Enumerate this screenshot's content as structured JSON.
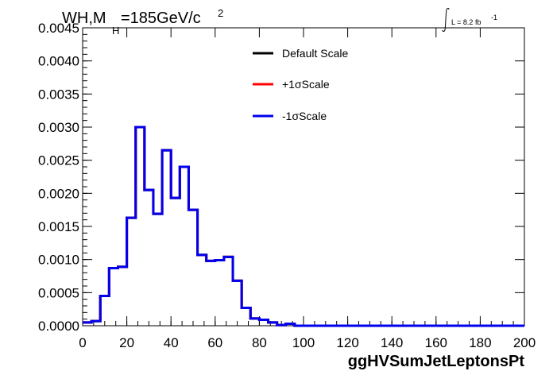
{
  "chart_data": {
    "type": "line",
    "title_main": "WH,M",
    "title_sub": "H",
    "title_rest": "=185GeV/c",
    "title_sup": "2",
    "lumi_text": "L = 8.2 fb",
    "lumi_sup": "-1",
    "xlabel": "ggHVSumJetLeptonsPt",
    "ylabel": "",
    "xlim": [
      0,
      200
    ],
    "ylim": [
      0,
      0.0045
    ],
    "x_ticks": [
      "0",
      "20",
      "40",
      "60",
      "80",
      "100",
      "120",
      "140",
      "160",
      "180",
      "200"
    ],
    "y_ticks": [
      "0.0000",
      "0.0005",
      "0.0010",
      "0.0015",
      "0.0020",
      "0.0025",
      "0.0030",
      "0.0035",
      "0.0040",
      "0.0045"
    ],
    "bin_width": 4,
    "bin_edges_start": 0,
    "legend_position": "top-center",
    "series": [
      {
        "name": "Default Scale",
        "color": "#000000",
        "values": [
          5e-05,
          7e-05,
          0.00045,
          0.00087,
          0.00089,
          0.00163,
          0.003,
          0.00205,
          0.00169,
          0.00265,
          0.00193,
          0.0024,
          0.00175,
          0.00107,
          0.00098,
          0.00099,
          0.00104,
          0.00068,
          0.00027,
          0.00011,
          9e-05,
          5e-05,
          1e-05,
          3e-05,
          0.0,
          0.0,
          0.0,
          0.0,
          0.0,
          0.0,
          0.0,
          0.0,
          0.0,
          0.0,
          0.0,
          0.0,
          0.0,
          0.0,
          0.0,
          0.0,
          0.0,
          0.0,
          0.0,
          0.0,
          0.0,
          0.0,
          0.0,
          0.0,
          0.0,
          0.0
        ]
      },
      {
        "name": "+1σScale",
        "color": "#ff0000",
        "values": [
          5e-05,
          7e-05,
          0.00045,
          0.00087,
          0.00089,
          0.00163,
          0.003,
          0.00205,
          0.00169,
          0.00265,
          0.00193,
          0.0024,
          0.00175,
          0.00107,
          0.00098,
          0.00099,
          0.00104,
          0.00068,
          0.00027,
          0.00011,
          9e-05,
          5e-05,
          1e-05,
          3e-05,
          0.0,
          0.0,
          0.0,
          0.0,
          0.0,
          0.0,
          0.0,
          0.0,
          0.0,
          0.0,
          0.0,
          0.0,
          0.0,
          0.0,
          0.0,
          0.0,
          0.0,
          0.0,
          0.0,
          0.0,
          0.0,
          0.0,
          0.0,
          0.0,
          0.0,
          0.0
        ]
      },
      {
        "name": "-1σScale",
        "color": "#0000ee",
        "values": [
          5e-05,
          7e-05,
          0.00045,
          0.00087,
          0.00089,
          0.00163,
          0.003,
          0.00205,
          0.00169,
          0.00265,
          0.00193,
          0.0024,
          0.00175,
          0.00107,
          0.00098,
          0.00099,
          0.00104,
          0.00068,
          0.00027,
          0.00011,
          9e-05,
          5e-05,
          1e-05,
          3e-05,
          0.0,
          0.0,
          0.0,
          0.0,
          0.0,
          0.0,
          0.0,
          0.0,
          0.0,
          0.0,
          0.0,
          0.0,
          0.0,
          0.0,
          0.0,
          0.0,
          0.0,
          0.0,
          0.0,
          0.0,
          0.0,
          0.0,
          0.0,
          0.0,
          0.0,
          0.0
        ]
      }
    ]
  }
}
